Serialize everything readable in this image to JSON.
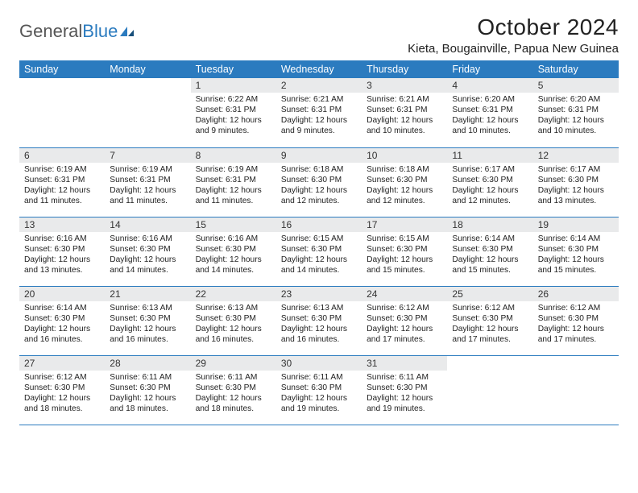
{
  "logo": {
    "word1": "General",
    "word2": "Blue"
  },
  "title": "October 2024",
  "location": "Kieta, Bougainville, Papua New Guinea",
  "colors": {
    "header_bg": "#2b7bbf",
    "header_fg": "#ffffff",
    "daynum_bg": "#e9eaeb",
    "row_border": "#2b7bbf",
    "page_bg": "#ffffff",
    "text": "#222222"
  },
  "day_headers": [
    "Sunday",
    "Monday",
    "Tuesday",
    "Wednesday",
    "Thursday",
    "Friday",
    "Saturday"
  ],
  "weeks": [
    [
      {
        "n": "",
        "sr": "",
        "ss": "",
        "dl": ""
      },
      {
        "n": "",
        "sr": "",
        "ss": "",
        "dl": ""
      },
      {
        "n": "1",
        "sr": "6:22 AM",
        "ss": "6:31 PM",
        "dl": "12 hours and 9 minutes."
      },
      {
        "n": "2",
        "sr": "6:21 AM",
        "ss": "6:31 PM",
        "dl": "12 hours and 9 minutes."
      },
      {
        "n": "3",
        "sr": "6:21 AM",
        "ss": "6:31 PM",
        "dl": "12 hours and 10 minutes."
      },
      {
        "n": "4",
        "sr": "6:20 AM",
        "ss": "6:31 PM",
        "dl": "12 hours and 10 minutes."
      },
      {
        "n": "5",
        "sr": "6:20 AM",
        "ss": "6:31 PM",
        "dl": "12 hours and 10 minutes."
      }
    ],
    [
      {
        "n": "6",
        "sr": "6:19 AM",
        "ss": "6:31 PM",
        "dl": "12 hours and 11 minutes."
      },
      {
        "n": "7",
        "sr": "6:19 AM",
        "ss": "6:31 PM",
        "dl": "12 hours and 11 minutes."
      },
      {
        "n": "8",
        "sr": "6:19 AM",
        "ss": "6:31 PM",
        "dl": "12 hours and 11 minutes."
      },
      {
        "n": "9",
        "sr": "6:18 AM",
        "ss": "6:30 PM",
        "dl": "12 hours and 12 minutes."
      },
      {
        "n": "10",
        "sr": "6:18 AM",
        "ss": "6:30 PM",
        "dl": "12 hours and 12 minutes."
      },
      {
        "n": "11",
        "sr": "6:17 AM",
        "ss": "6:30 PM",
        "dl": "12 hours and 12 minutes."
      },
      {
        "n": "12",
        "sr": "6:17 AM",
        "ss": "6:30 PM",
        "dl": "12 hours and 13 minutes."
      }
    ],
    [
      {
        "n": "13",
        "sr": "6:16 AM",
        "ss": "6:30 PM",
        "dl": "12 hours and 13 minutes."
      },
      {
        "n": "14",
        "sr": "6:16 AM",
        "ss": "6:30 PM",
        "dl": "12 hours and 14 minutes."
      },
      {
        "n": "15",
        "sr": "6:16 AM",
        "ss": "6:30 PM",
        "dl": "12 hours and 14 minutes."
      },
      {
        "n": "16",
        "sr": "6:15 AM",
        "ss": "6:30 PM",
        "dl": "12 hours and 14 minutes."
      },
      {
        "n": "17",
        "sr": "6:15 AM",
        "ss": "6:30 PM",
        "dl": "12 hours and 15 minutes."
      },
      {
        "n": "18",
        "sr": "6:14 AM",
        "ss": "6:30 PM",
        "dl": "12 hours and 15 minutes."
      },
      {
        "n": "19",
        "sr": "6:14 AM",
        "ss": "6:30 PM",
        "dl": "12 hours and 15 minutes."
      }
    ],
    [
      {
        "n": "20",
        "sr": "6:14 AM",
        "ss": "6:30 PM",
        "dl": "12 hours and 16 minutes."
      },
      {
        "n": "21",
        "sr": "6:13 AM",
        "ss": "6:30 PM",
        "dl": "12 hours and 16 minutes."
      },
      {
        "n": "22",
        "sr": "6:13 AM",
        "ss": "6:30 PM",
        "dl": "12 hours and 16 minutes."
      },
      {
        "n": "23",
        "sr": "6:13 AM",
        "ss": "6:30 PM",
        "dl": "12 hours and 16 minutes."
      },
      {
        "n": "24",
        "sr": "6:12 AM",
        "ss": "6:30 PM",
        "dl": "12 hours and 17 minutes."
      },
      {
        "n": "25",
        "sr": "6:12 AM",
        "ss": "6:30 PM",
        "dl": "12 hours and 17 minutes."
      },
      {
        "n": "26",
        "sr": "6:12 AM",
        "ss": "6:30 PM",
        "dl": "12 hours and 17 minutes."
      }
    ],
    [
      {
        "n": "27",
        "sr": "6:12 AM",
        "ss": "6:30 PM",
        "dl": "12 hours and 18 minutes."
      },
      {
        "n": "28",
        "sr": "6:11 AM",
        "ss": "6:30 PM",
        "dl": "12 hours and 18 minutes."
      },
      {
        "n": "29",
        "sr": "6:11 AM",
        "ss": "6:30 PM",
        "dl": "12 hours and 18 minutes."
      },
      {
        "n": "30",
        "sr": "6:11 AM",
        "ss": "6:30 PM",
        "dl": "12 hours and 19 minutes."
      },
      {
        "n": "31",
        "sr": "6:11 AM",
        "ss": "6:30 PM",
        "dl": "12 hours and 19 minutes."
      },
      {
        "n": "",
        "sr": "",
        "ss": "",
        "dl": ""
      },
      {
        "n": "",
        "sr": "",
        "ss": "",
        "dl": ""
      }
    ]
  ],
  "labels": {
    "sunrise": "Sunrise:",
    "sunset": "Sunset:",
    "daylight": "Daylight:"
  }
}
